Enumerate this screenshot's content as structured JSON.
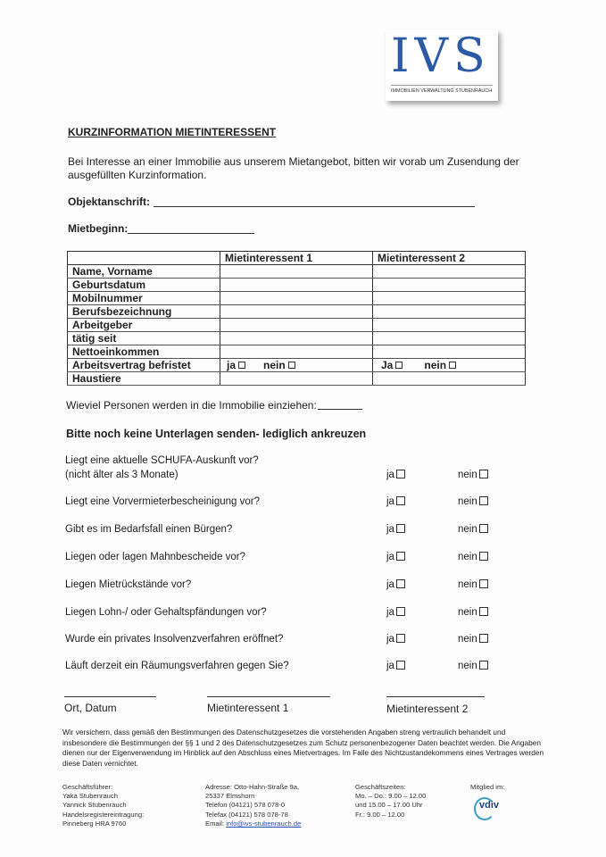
{
  "logo": {
    "letters": "IVS",
    "subtitle": "IMMOBILIEN VERWALTUNG STUBENRAUCH",
    "color": "#2c5aa6"
  },
  "title": "KURZINFORMATION  MIETINTERESSENT",
  "intro": [
    "Bei Interesse an einer Immobilie aus unserem Mietangebot, bitten wir vorab um Zusendung der",
    "ausgefüllten Kurzinformation."
  ],
  "fields": {
    "address": "Objektanschrift:",
    "start": "Mietbeginn:"
  },
  "table": {
    "headers": [
      "",
      "Mietinteressent 1",
      "Mietinteressent 2"
    ],
    "rows": [
      "Name, Vorname",
      "Geburtsdatum",
      "Mobilnummer",
      "Berufsbezeichnung",
      "Arbeitgeber",
      "tätig seit",
      "Nettoeinkommen",
      "Arbeitsvertrag  befristet",
      "Haustiere"
    ],
    "yes1": "ja",
    "no1": "nein",
    "yes2": "Ja",
    "no2": "nein"
  },
  "persons": "Wieviel Personen werden in die Immobilie einziehen:",
  "checklist_heading": "Bitte noch keine Unterlagen senden- lediglich ankreuzen",
  "yes": "ja",
  "no": "nein",
  "questions": [
    "Liegt eine aktuelle SCHUFA-Auskunft vor?",
    "Liegt eine Vorvermieterbescheinigung vor?",
    "Gibt es im Bedarfsfall einen Bürgen?",
    "Liegen oder lagen Mahnbescheide vor?",
    "Liegen Mietrückstände vor?",
    "Liegen Lohn-/ oder Gehaltspfändungen vor?",
    "Wurde ein privates Insolvenzverfahren eröffnet?",
    "Läuft derzeit ein Räumungsverfahren gegen Sie?"
  ],
  "question_note": "(nicht älter als 3 Monate)",
  "signatures": [
    "Ort, Datum",
    "Mietinteressent 1",
    "Mietinteressent 2"
  ],
  "disclaimer": "Wir versichern, dass gemäß den Bestimmungen des Datenschutzgesetzes die vorstehenden Angaben streng vertraulich behandelt und insbesondere die Bestimmungen der §§ 1 und 2 des Datenschutzgesetzes zum Schutz personenbezogener Daten beachtet werden. Die Angaben dienen nur der Eigenverwendung im Hinblick auf den Abschluss eines Mietvertrages. Im Falle des Nichtzustandekommens eines Vertrages werden diese Daten vernichtet.",
  "footer": {
    "management": [
      "Geschäftsführer:",
      "Yaka Stubenrauch",
      "Yannick Stubenrauch",
      "Handelsregistereintragung:",
      "Pinneberg HRA 9760"
    ],
    "address": [
      "Adresse: Otto-Hahn-Straße 9a,",
      "25337 Elmshorn",
      "Telefon (04121) 578 078-0",
      "Telefax (04121) 578 078-78"
    ],
    "email_label": "Email: ",
    "email": "info@ivs-stubenrauch.de",
    "hours": [
      "Geschäftszeiten:",
      "Mo. – Do.: 9.00 – 12.00",
      "und 15.00 – 17.00 Uhr",
      "Fr.: 9.00 – 12.00"
    ],
    "member": "Mitglied im:",
    "member_logo": "vdiv"
  }
}
